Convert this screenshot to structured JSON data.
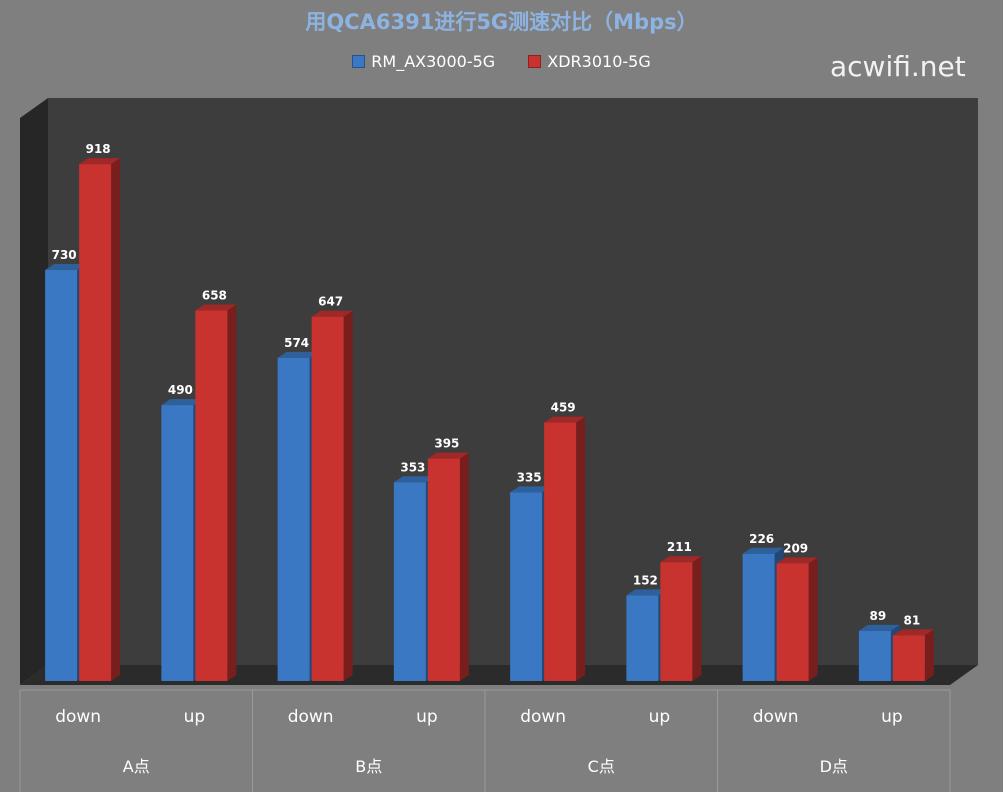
{
  "chart_data": {
    "type": "bar",
    "title": "用QCA6391进行5G测速对比（Mbps）",
    "watermark": "acwifi.net",
    "groups": [
      {
        "label": "A点",
        "categories": [
          "down",
          "up"
        ]
      },
      {
        "label": "B点",
        "categories": [
          "down",
          "up"
        ]
      },
      {
        "label": "C点",
        "categories": [
          "down",
          "up"
        ]
      },
      {
        "label": "D点",
        "categories": [
          "down",
          "up"
        ]
      }
    ],
    "series": [
      {
        "name": "RM_AX3000-5G",
        "color": "#3a78c3",
        "values": [
          730,
          490,
          574,
          353,
          335,
          152,
          226,
          89
        ]
      },
      {
        "name": "XDR3010-5G",
        "color": "#c8322f",
        "values": [
          918,
          658,
          647,
          395,
          459,
          211,
          209,
          81
        ]
      }
    ],
    "ylim": [
      0,
      1000
    ],
    "grid": false,
    "legend_position": "top",
    "style": "3d-column",
    "colors": {
      "background": "#7f7f7f",
      "plot_back": "#3d3d3d",
      "plot_side": "#262626",
      "floor": "#2b2b2b",
      "title": "#8db3e2"
    }
  }
}
